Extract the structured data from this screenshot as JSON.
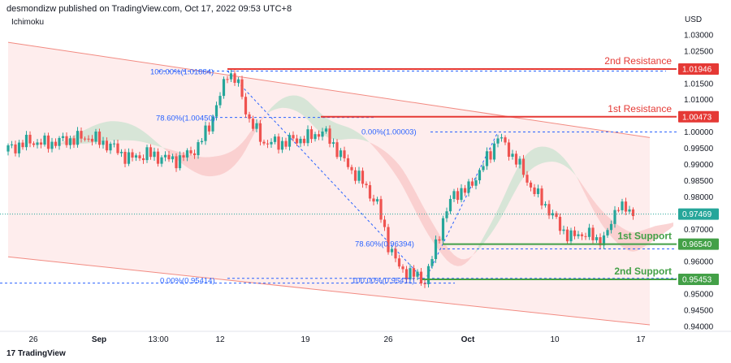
{
  "header": {
    "publisher_line": "desmondizw published on TradingView.com, Oct 17, 2022 09:53 UTC+8",
    "indicator_label": "Ichimoku",
    "currency": "USD",
    "branding": "TradingView"
  },
  "colors": {
    "bull": "#26a69a",
    "bear": "#ef5350",
    "resistance": "#e53935",
    "support": "#43a047",
    "fib": "#2962ff",
    "cloud_bear": "#f8c6c6",
    "cloud_bull": "#c9e2cf",
    "channel": "#fde5e5"
  },
  "chart_data": {
    "type": "candlestick",
    "y_axis": {
      "range": [
        0.9385,
        1.0365
      ],
      "ticks": [
        0.94,
        0.945,
        0.95,
        0.955,
        0.96,
        0.965,
        0.97,
        0.975,
        0.98,
        0.985,
        0.99,
        0.995,
        1.0,
        1.005,
        1.01,
        1.015,
        1.02,
        1.025,
        1.03
      ],
      "tick_labels": [
        "0.94000",
        "0.94500",
        "0.95000",
        "0.95500",
        "0.96000",
        "0.96500",
        "0.97000",
        "0.97500",
        "0.98000",
        "0.98500",
        "0.99000",
        "0.99500",
        "1.00000",
        "1.00500",
        "1.01000",
        "1.01500",
        "1.02000",
        "1.02500",
        "1.03000"
      ]
    },
    "x_axis": {
      "labels": [
        "26",
        "Sep",
        "13:00",
        "12",
        "19",
        "26",
        "Oct",
        "10",
        "17"
      ]
    },
    "price_labels": [
      {
        "value": 1.01946,
        "text": "1.01946",
        "kind": "resistance"
      },
      {
        "value": 1.00473,
        "text": "1.00473",
        "kind": "resistance"
      },
      {
        "value": 0.97469,
        "text": "0.97469",
        "kind": "current"
      },
      {
        "value": 0.9654,
        "text": "0.96540",
        "kind": "support"
      },
      {
        "value": 0.95453,
        "text": "0.95453",
        "kind": "support"
      }
    ],
    "levels": [
      {
        "name": "2nd Resistance",
        "value": 1.01946,
        "kind": "resistance"
      },
      {
        "name": "1st Resistance",
        "value": 1.00473,
        "kind": "resistance"
      },
      {
        "name": "1st Support",
        "value": 0.9654,
        "kind": "support"
      },
      {
        "name": "2nd Support",
        "value": 0.95453,
        "kind": "support"
      }
    ],
    "fib_labels": [
      {
        "text": "100.00%(1.01884)"
      },
      {
        "text": "78.60%(1.00450)"
      },
      {
        "text": "0.00%(0.95414)"
      },
      {
        "text": "0.00%(1.00003)"
      },
      {
        "text": "78.60%(0.96394)"
      },
      {
        "text": "100.00%(0.95411)"
      }
    ],
    "channel": {
      "upper": [
        [
          1.0277,
          0.9983
        ]
      ],
      "lower": [
        [
          0.9615,
          0.9405
        ]
      ]
    },
    "price_path": [
      [
        0,
        0.9948
      ],
      [
        6,
        0.9972
      ],
      [
        10,
        0.9964
      ],
      [
        16,
        0.9975
      ],
      [
        22,
        0.9985
      ],
      [
        28,
        0.9958
      ],
      [
        33,
        0.9918
      ],
      [
        38,
        0.9932
      ],
      [
        44,
        0.9916
      ],
      [
        47,
        0.9915
      ],
      [
        52,
        0.9955
      ],
      [
        55,
        1.0022
      ],
      [
        58,
        1.0108
      ],
      [
        60,
        1.0188
      ],
      [
        63,
        1.0145
      ],
      [
        66,
        1.0035
      ],
      [
        70,
        0.9968
      ],
      [
        74,
        0.9965
      ],
      [
        78,
        0.9975
      ],
      [
        82,
        0.9982
      ],
      [
        86,
        1.0003
      ],
      [
        89,
        0.9962
      ],
      [
        93,
        0.9895
      ],
      [
        97,
        0.9845
      ],
      [
        101,
        0.9775
      ],
      [
        104,
        0.9655
      ],
      [
        107,
        0.958
      ],
      [
        111,
        0.9558
      ],
      [
        114,
        0.9541
      ],
      [
        116,
        0.961
      ],
      [
        119,
        0.973
      ],
      [
        122,
        0.981
      ],
      [
        126,
        0.9825
      ],
      [
        129,
        0.988
      ],
      [
        132,
        0.9935
      ],
      [
        134,
        0.999
      ],
      [
        136,
        0.9955
      ],
      [
        139,
        0.9915
      ],
      [
        142,
        0.985
      ],
      [
        145,
        0.98
      ],
      [
        148,
        0.976
      ],
      [
        151,
        0.9705
      ],
      [
        154,
        0.9675
      ],
      [
        158,
        0.969
      ],
      [
        161,
        0.9665
      ],
      [
        164,
        0.9685
      ],
      [
        167,
        0.9785
      ],
      [
        169,
        0.9755
      ],
      [
        171,
        0.9747
      ]
    ]
  }
}
